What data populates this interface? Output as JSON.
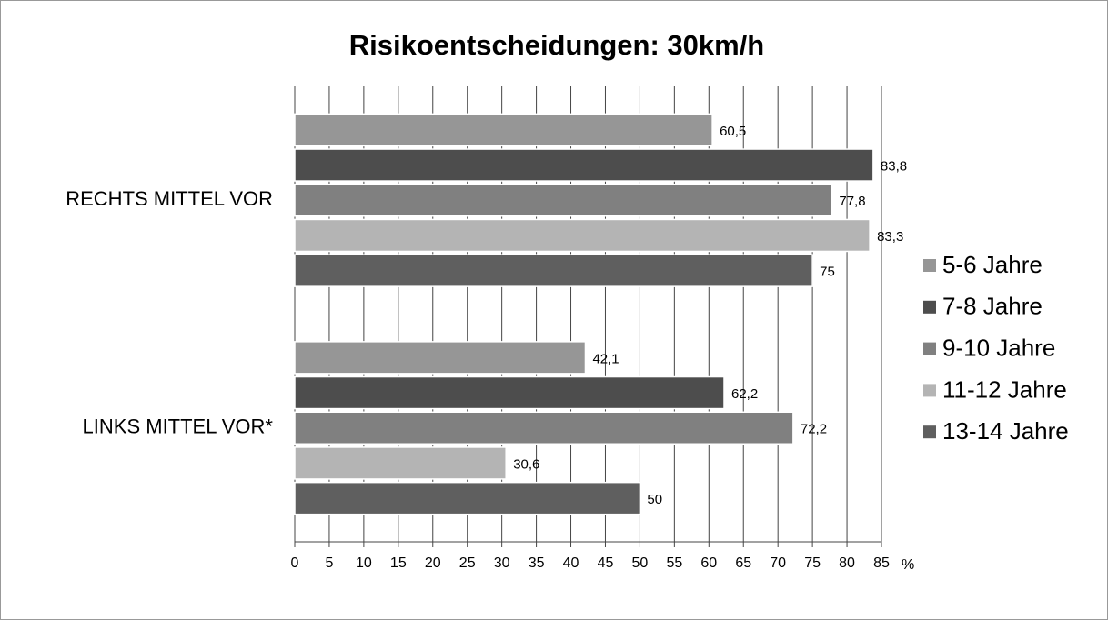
{
  "chart_data": {
    "type": "bar",
    "orientation": "horizontal",
    "title": "Risikoentscheidungen: 30km/h",
    "x_label": "%",
    "categories": [
      "RECHTS MITTEL VOR",
      "LINKS MITTEL VOR*"
    ],
    "series": [
      {
        "name": "5-6 Jahre",
        "color": "#969696",
        "values": [
          60.5,
          42.1
        ],
        "value_labels": [
          "60,5",
          "42,1"
        ]
      },
      {
        "name": "7-8 Jahre",
        "color": "#4d4d4d",
        "values": [
          83.8,
          62.2
        ],
        "value_labels": [
          "83,8",
          "62,2"
        ]
      },
      {
        "name": "9-10 Jahre",
        "color": "#808080",
        "values": [
          77.8,
          72.2
        ],
        "value_labels": [
          "77,8",
          "72,2"
        ]
      },
      {
        "name": "11-12 Jahre",
        "color": "#b4b4b4",
        "values": [
          83.3,
          30.6
        ],
        "value_labels": [
          "83,3",
          "30,6"
        ]
      },
      {
        "name": "13-14 Jahre",
        "color": "#5f5f5f",
        "values": [
          75,
          50
        ],
        "value_labels": [
          "75",
          "50"
        ]
      }
    ],
    "xlim": [
      0,
      85
    ],
    "xticks": [
      0,
      5,
      10,
      15,
      20,
      25,
      30,
      35,
      40,
      45,
      50,
      55,
      60,
      65,
      70,
      75,
      80,
      85
    ],
    "grid": true,
    "legend": "right"
  }
}
